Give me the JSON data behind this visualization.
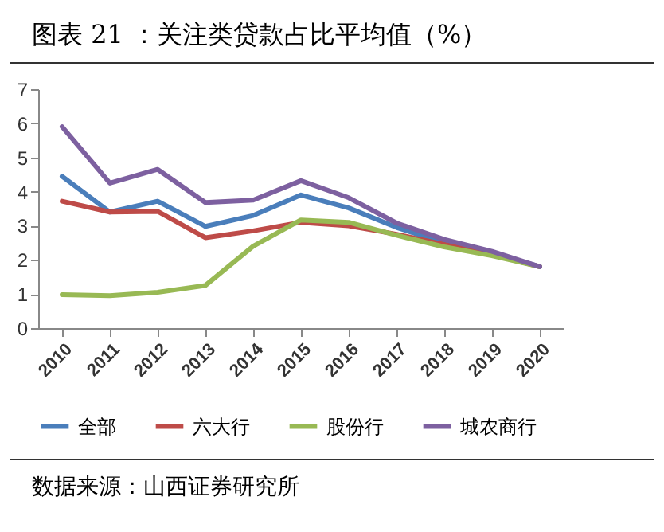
{
  "chart_data": {
    "type": "line",
    "title": "图表 21 ：关注类贷款占比平均值（%）",
    "annotations": [
      "数据来源：山西证券研究所"
    ],
    "categories": [
      "2010",
      "2011",
      "2012",
      "2013",
      "2014",
      "2015",
      "2016",
      "2017",
      "2018",
      "2019",
      "2020"
    ],
    "ylim": [
      0,
      7
    ],
    "yticks": [
      0,
      1,
      2,
      3,
      4,
      5,
      6,
      7
    ],
    "grid": false,
    "legend": "bottom",
    "marker": "none",
    "line_style": "solid",
    "series": [
      {
        "name": "全部",
        "color": "#4a7ebb",
        "values": [
          4.45,
          3.4,
          3.72,
          2.98,
          3.3,
          3.9,
          3.52,
          2.95,
          2.5,
          2.2,
          1.8
        ]
      },
      {
        "name": "六大行",
        "color": "#be4b48",
        "values": [
          3.72,
          3.4,
          3.42,
          2.65,
          2.85,
          3.1,
          3.0,
          2.75,
          2.45,
          2.15,
          1.8
        ]
      },
      {
        "name": "股份行",
        "color": "#98b954",
        "values": [
          0.98,
          0.95,
          1.05,
          1.25,
          2.4,
          3.17,
          3.1,
          2.72,
          2.38,
          2.12,
          1.8
        ]
      },
      {
        "name": "城农商行",
        "color": "#7d60a0",
        "values": [
          5.9,
          4.25,
          4.65,
          3.68,
          3.75,
          4.32,
          3.82,
          3.08,
          2.6,
          2.25,
          1.8
        ]
      }
    ]
  }
}
